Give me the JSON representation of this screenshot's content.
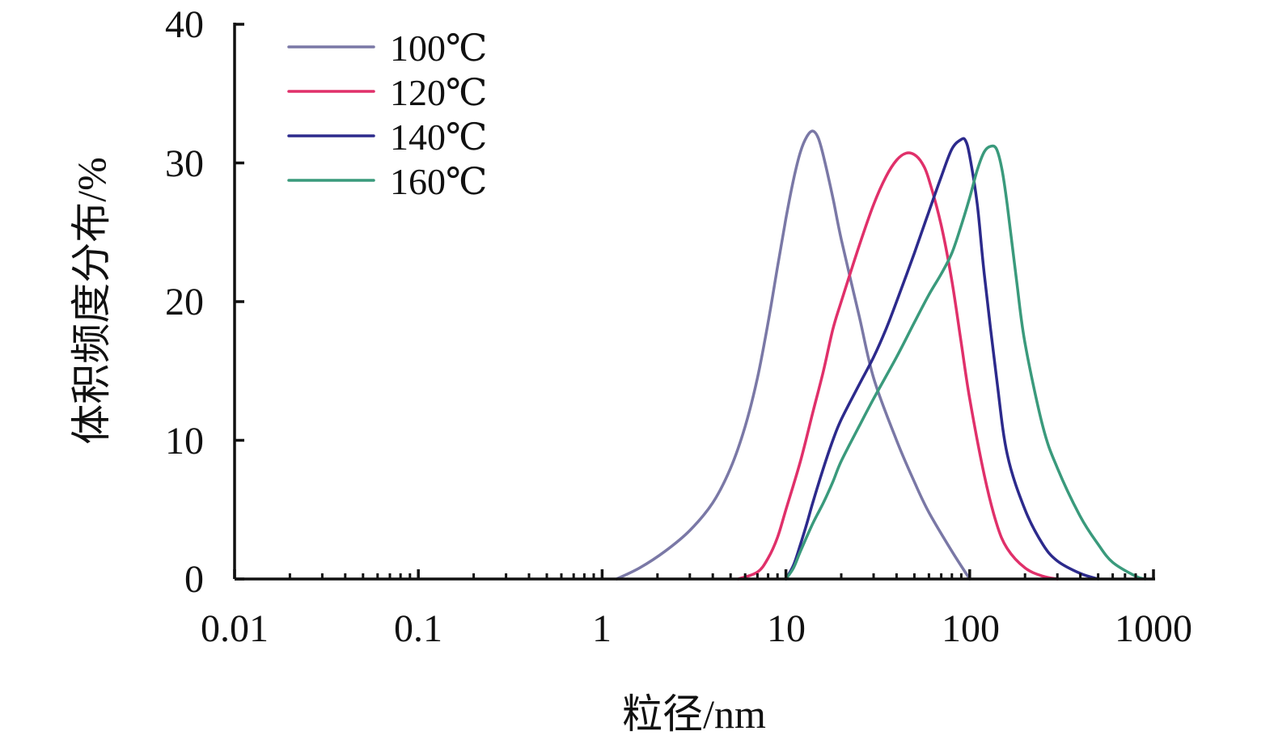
{
  "chart_data": {
    "type": "line",
    "xlabel": "粒径/nm",
    "ylabel": "体积频度分布/%",
    "x_scale": "log",
    "xlim": [
      0.01,
      1000
    ],
    "ylim": [
      0,
      40
    ],
    "x_ticks": [
      "0.01",
      "0.1",
      "1",
      "10",
      "100",
      "1000"
    ],
    "y_ticks": [
      "0",
      "10",
      "20",
      "30",
      "40"
    ],
    "grid": false,
    "legend_position": "top-left",
    "series": [
      {
        "name": "100℃",
        "color": "#7a78a6",
        "x": [
          1.2,
          1.6,
          2.2,
          3.0,
          4.0,
          5.0,
          6.0,
          7.0,
          8.0,
          9.0,
          10.0,
          11.0,
          12.0,
          13.0,
          14.0,
          15.0,
          16.0,
          18.0,
          20.0,
          25.0,
          30.0,
          40.0,
          50.0,
          60.0,
          80.0,
          100.0
        ],
        "y": [
          0.0,
          0.8,
          2.0,
          3.5,
          5.5,
          8.0,
          11.0,
          14.5,
          18.5,
          22.5,
          26.0,
          28.8,
          30.8,
          31.9,
          32.3,
          31.8,
          30.5,
          27.5,
          24.5,
          19.0,
          14.5,
          10.0,
          7.0,
          4.8,
          2.0,
          0.0
        ]
      },
      {
        "name": "120℃",
        "color": "#e0306a",
        "x": [
          5.5,
          7.0,
          8.0,
          9.0,
          10.0,
          12.0,
          14.0,
          16.0,
          18.0,
          20.0,
          25.0,
          30.0,
          35.0,
          40.0,
          45.0,
          50.0,
          55.0,
          60.0,
          70.0,
          80.0,
          90.0,
          100.0,
          120.0,
          140.0,
          160.0,
          200.0,
          250.0,
          300.0
        ],
        "y": [
          0.0,
          0.5,
          1.5,
          3.0,
          5.0,
          8.5,
          12.0,
          15.0,
          18.0,
          20.0,
          24.0,
          27.0,
          29.0,
          30.2,
          30.7,
          30.6,
          30.0,
          28.8,
          25.5,
          21.5,
          17.0,
          13.0,
          7.5,
          4.0,
          2.2,
          0.8,
          0.2,
          0.0
        ]
      },
      {
        "name": "140℃",
        "color": "#2c2a8c",
        "x": [
          10.0,
          11.0,
          12.0,
          13.0,
          14.0,
          16.0,
          18.0,
          20.0,
          25.0,
          30.0,
          35.0,
          40.0,
          50.0,
          60.0,
          70.0,
          80.0,
          90.0,
          95.0,
          100.0,
          110.0,
          120.0,
          140.0,
          160.0,
          200.0,
          250.0,
          300.0,
          400.0,
          500.0
        ],
        "y": [
          0.0,
          1.0,
          2.5,
          4.0,
          5.5,
          8.0,
          10.0,
          11.5,
          14.0,
          16.0,
          18.0,
          20.0,
          23.5,
          26.5,
          29.0,
          31.0,
          31.7,
          31.6,
          30.5,
          27.0,
          22.0,
          14.5,
          9.0,
          5.0,
          2.5,
          1.3,
          0.4,
          0.0
        ]
      },
      {
        "name": "160℃",
        "color": "#3a9a7c",
        "x": [
          10.0,
          11.0,
          12.0,
          14.0,
          16.0,
          18.0,
          20.0,
          25.0,
          30.0,
          40.0,
          50.0,
          60.0,
          70.0,
          80.0,
          90.0,
          100.0,
          110.0,
          120.0,
          130.0,
          140.0,
          150.0,
          160.0,
          180.0,
          200.0,
          250.0,
          300.0,
          400.0,
          500.0,
          600.0,
          800.0,
          900.0
        ],
        "y": [
          0.0,
          0.8,
          2.0,
          4.0,
          5.5,
          7.0,
          8.5,
          11.0,
          13.0,
          16.0,
          18.5,
          20.5,
          22.0,
          23.5,
          25.5,
          27.5,
          29.5,
          30.8,
          31.2,
          31.0,
          29.5,
          27.0,
          21.5,
          17.0,
          11.0,
          8.0,
          4.5,
          2.5,
          1.2,
          0.2,
          0.0
        ]
      }
    ]
  }
}
